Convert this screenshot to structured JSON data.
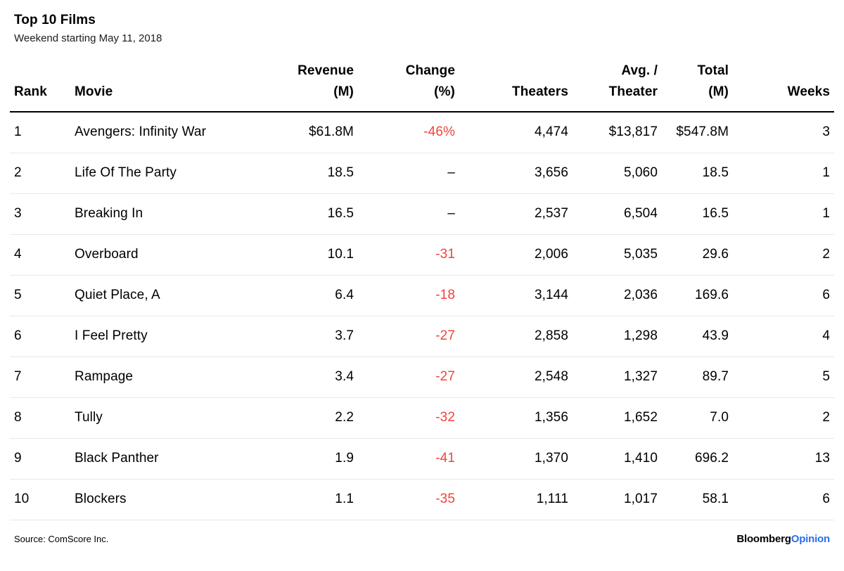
{
  "header": {
    "title": "Top 10 Films",
    "subtitle": "Weekend starting May 11, 2018"
  },
  "colors": {
    "negative_change": "#f5423b",
    "header_rule": "#000000",
    "row_rule": "#e8e8e8",
    "logo_blue": "#2b6cf0",
    "logo_black": "#000000"
  },
  "chart_data": {
    "type": "table",
    "title": "Top 10 Films",
    "subtitle": "Weekend starting May 11, 2018",
    "columns": [
      {
        "label": "Rank",
        "align": "left"
      },
      {
        "label": "Movie",
        "align": "left"
      },
      {
        "label": "Revenue (M)",
        "line1": "Revenue",
        "line2": "(M)",
        "align": "right"
      },
      {
        "label": "Change (%)",
        "line1": "Change",
        "line2": "(%)",
        "align": "right"
      },
      {
        "label": "Theaters",
        "align": "right"
      },
      {
        "label": "Avg. / Theater",
        "line1": "Avg. /",
        "line2": "Theater",
        "align": "right"
      },
      {
        "label": "Total (M)",
        "line1": "Total",
        "line2": "(M)",
        "align": "right"
      },
      {
        "label": "Weeks",
        "align": "right"
      }
    ],
    "rows": [
      [
        "1",
        "Avengers: Infinity War",
        "$61.8M",
        "-46%",
        "4,474",
        "$13,817",
        "$547.8M",
        "3"
      ],
      [
        "2",
        "Life Of The Party",
        "18.5",
        "–",
        "3,656",
        "5,060",
        "18.5",
        "1"
      ],
      [
        "3",
        "Breaking In",
        "16.5",
        "–",
        "2,537",
        "6,504",
        "16.5",
        "1"
      ],
      [
        "4",
        "Overboard",
        "10.1",
        "-31",
        "2,006",
        "5,035",
        "29.6",
        "2"
      ],
      [
        "5",
        "Quiet Place, A",
        "6.4",
        "-18",
        "3,144",
        "2,036",
        "169.6",
        "6"
      ],
      [
        "6",
        "I Feel Pretty",
        "3.7",
        "-27",
        "2,858",
        "1,298",
        "43.9",
        "4"
      ],
      [
        "7",
        "Rampage",
        "3.4",
        "-27",
        "2,548",
        "1,327",
        "89.7",
        "5"
      ],
      [
        "8",
        "Tully",
        "2.2",
        "-32",
        "1,356",
        "1,652",
        "7.0",
        "2"
      ],
      [
        "9",
        "Black Panther",
        "1.9",
        "-41",
        "1,370",
        "1,410",
        "696.2",
        "13"
      ],
      [
        "10",
        "Blockers",
        "1.1",
        "-35",
        "1,111",
        "1,017",
        "58.1",
        "6"
      ]
    ]
  },
  "footer": {
    "source": "Source: ComScore Inc.",
    "logo_black": "Bloomberg",
    "logo_blue": "Opinion"
  }
}
